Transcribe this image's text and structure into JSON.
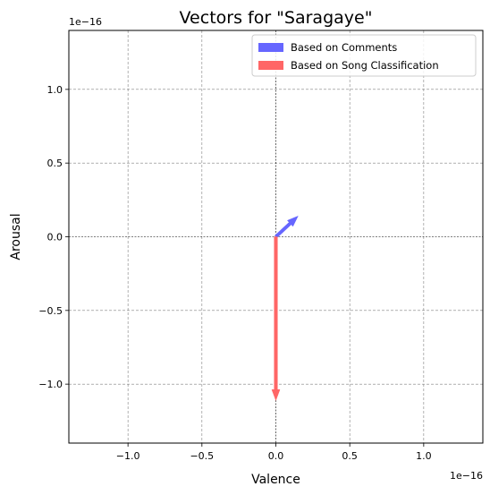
{
  "chart_data": {
    "type": "quiver",
    "title": "Vectors for \"Saragaye\"",
    "xlabel": "Valence",
    "ylabel": "Arousal",
    "x_scale_label": "1e−16",
    "y_scale_label": "1e−16",
    "xlim": [
      -1.4,
      1.4
    ],
    "ylim": [
      -1.4,
      1.4
    ],
    "xticks": [
      -1.0,
      -0.5,
      0.0,
      0.5,
      1.0
    ],
    "yticks": [
      -1.0,
      -0.5,
      0.0,
      0.5,
      1.0
    ],
    "xtick_labels": [
      "−1.0",
      "−0.5",
      "0.0",
      "0.5",
      "1.0"
    ],
    "ytick_labels": [
      "−1.0",
      "−0.5",
      "0.0",
      "0.5",
      "1.0"
    ],
    "grid": true,
    "legend_position": "top-right",
    "series": [
      {
        "name": "Based on Comments",
        "color": "#6666ff",
        "origin": [
          0,
          0
        ],
        "vector": [
          0.15,
          0.14
        ]
      },
      {
        "name": "Based on Song Classification",
        "color": "#ff6666",
        "origin": [
          0,
          0
        ],
        "vector": [
          0.0,
          -1.11
        ]
      }
    ]
  }
}
